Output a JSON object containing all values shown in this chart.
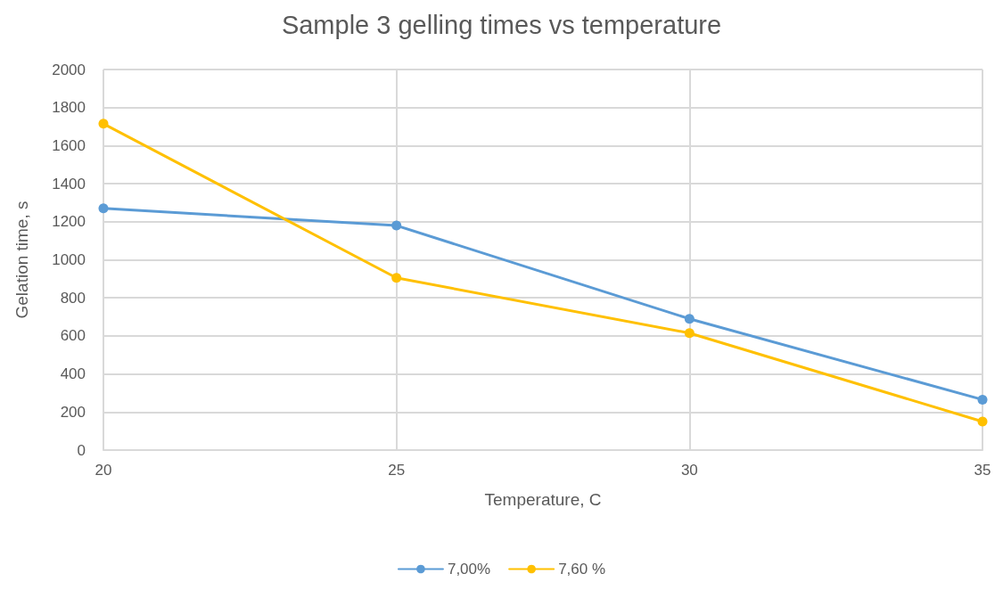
{
  "chart_data": {
    "type": "line",
    "title": "Sample 3 gelling times vs temperature",
    "xlabel": "Temperature, C",
    "ylabel": "Gelation time, s",
    "x": [
      20,
      25,
      30,
      35
    ],
    "series": [
      {
        "name": "7,00%",
        "color": "#5b9bd5",
        "values": [
          1270,
          1180,
          690,
          265
        ]
      },
      {
        "name": "7,60 %",
        "color": "#ffc000",
        "values": [
          1715,
          905,
          615,
          150
        ]
      }
    ],
    "xlim": [
      20,
      35
    ],
    "xticks": [
      20,
      25,
      30,
      35
    ],
    "ylim": [
      0,
      2000
    ],
    "yticks": [
      0,
      200,
      400,
      600,
      800,
      1000,
      1200,
      1400,
      1600,
      1800,
      2000
    ],
    "grid": true,
    "legend": "bottom",
    "marker": "circle",
    "line_style": "solid"
  }
}
